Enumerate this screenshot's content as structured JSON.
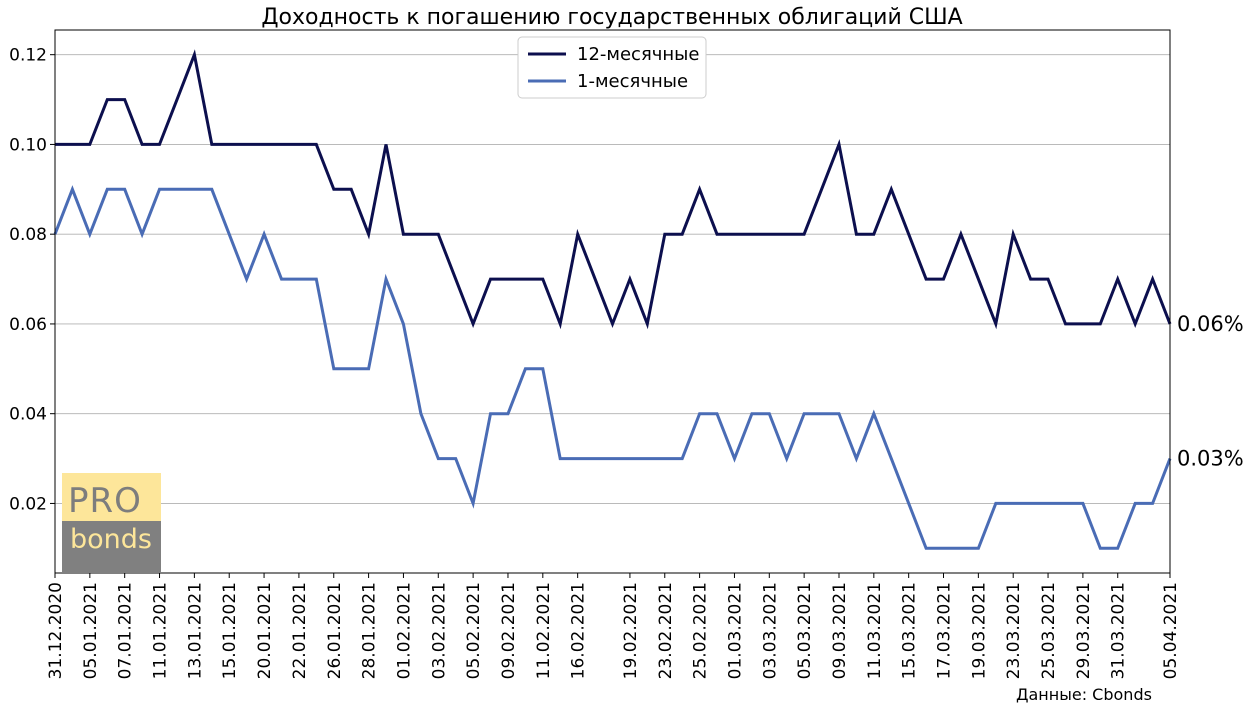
{
  "chart_data": {
    "type": "line",
    "title": "Доходность к погашению государственных облигаций США",
    "xlabel": "",
    "ylabel": "",
    "ylim": [
      0.0045,
      0.1255
    ],
    "yticks": [
      "0.02",
      "0.04",
      "0.06",
      "0.08",
      "0.10",
      "0.12"
    ],
    "ytick_values": [
      0.02,
      0.04,
      0.06,
      0.08,
      0.1,
      0.12
    ],
    "grid": "horizontal",
    "legend_position": "top-center",
    "x": [
      "31.12.2020",
      "04.01.2021",
      "05.01.2021",
      "06.01.2021",
      "07.01.2021",
      "08.01.2021",
      "11.01.2021",
      "12.01.2021",
      "13.01.2021",
      "14.01.2021",
      "15.01.2021",
      "19.01.2021",
      "20.01.2021",
      "21.01.2021",
      "22.01.2021",
      "25.01.2021",
      "26.01.2021",
      "27.01.2021",
      "28.01.2021",
      "29.01.2021",
      "01.02.2021",
      "02.02.2021",
      "03.02.2021",
      "04.02.2021",
      "05.02.2021",
      "08.02.2021",
      "09.02.2021",
      "10.02.2021",
      "11.02.2021",
      "12.02.2021",
      "16.02.2021",
      "17.02.2021",
      "18.02.2021",
      "19.02.2021",
      "22.02.2021",
      "23.02.2021",
      "24.02.2021",
      "25.02.2021",
      "26.02.2021",
      "01.03.2021",
      "02.03.2021",
      "03.03.2021",
      "04.03.2021",
      "05.03.2021",
      "08.03.2021",
      "09.03.2021",
      "10.03.2021",
      "11.03.2021",
      "12.03.2021",
      "15.03.2021",
      "16.03.2021",
      "17.03.2021",
      "18.03.2021",
      "19.03.2021",
      "22.03.2021",
      "23.03.2021",
      "24.03.2021",
      "25.03.2021",
      "26.03.2021",
      "29.03.2021",
      "30.03.2021",
      "31.03.2021",
      "01.04.2021",
      "02.04.2021",
      "05.04.2021"
    ],
    "xtick_labels": [
      "31.12.2020",
      "05.01.2021",
      "07.01.2021",
      "11.01.2021",
      "13.01.2021",
      "15.01.2021",
      "20.01.2021",
      "22.01.2021",
      "26.01.2021",
      "28.01.2021",
      "01.02.2021",
      "03.02.2021",
      "05.02.2021",
      "09.02.2021",
      "11.02.2021",
      "16.02.2021",
      "19.02.2021",
      "23.02.2021",
      "25.02.2021",
      "01.03.2021",
      "03.03.2021",
      "05.03.2021",
      "09.03.2021",
      "11.03.2021",
      "15.03.2021",
      "17.03.2021",
      "19.03.2021",
      "23.03.2021",
      "25.03.2021",
      "29.03.2021",
      "31.03.2021",
      "05.04.2021"
    ],
    "series": [
      {
        "name": "12-месячные",
        "color": "#0c0f4e",
        "values": [
          0.1,
          0.1,
          0.1,
          0.11,
          0.11,
          0.1,
          0.1,
          0.11,
          0.12,
          0.1,
          0.1,
          0.1,
          0.1,
          0.1,
          0.1,
          0.1,
          0.09,
          0.09,
          0.08,
          0.1,
          0.08,
          0.08,
          0.08,
          0.07,
          0.06,
          0.07,
          0.07,
          0.07,
          0.07,
          0.06,
          0.08,
          0.07,
          0.06,
          0.07,
          0.06,
          0.08,
          0.08,
          0.09,
          0.08,
          0.08,
          0.08,
          0.08,
          0.08,
          0.08,
          0.09,
          0.1,
          0.08,
          0.08,
          0.09,
          0.08,
          0.07,
          0.07,
          0.08,
          0.07,
          0.06,
          0.08,
          0.07,
          0.07,
          0.06,
          0.06,
          0.06,
          0.07,
          0.06,
          0.07,
          0.06
        ],
        "end_label": "0.06%"
      },
      {
        "name": "1-месячные",
        "color": "#4a6cb5",
        "values": [
          0.08,
          0.09,
          0.08,
          0.09,
          0.09,
          0.08,
          0.09,
          0.09,
          0.09,
          0.09,
          0.08,
          0.07,
          0.08,
          0.07,
          0.07,
          0.07,
          0.05,
          0.05,
          0.05,
          0.07,
          0.06,
          0.04,
          0.03,
          0.03,
          0.02,
          0.04,
          0.04,
          0.05,
          0.05,
          0.03,
          0.03,
          0.03,
          0.03,
          0.03,
          0.03,
          0.03,
          0.03,
          0.04,
          0.04,
          0.03,
          0.04,
          0.04,
          0.03,
          0.04,
          0.04,
          0.04,
          0.03,
          0.04,
          0.03,
          0.02,
          0.01,
          0.01,
          0.01,
          0.01,
          0.02,
          0.02,
          0.02,
          0.02,
          0.02,
          0.02,
          0.01,
          0.01,
          0.02,
          0.02,
          0.03
        ],
        "end_label": "0.03%"
      }
    ]
  },
  "logo": {
    "top": "PRO",
    "bottom": "bonds"
  },
  "source": "Данные: Cbonds"
}
